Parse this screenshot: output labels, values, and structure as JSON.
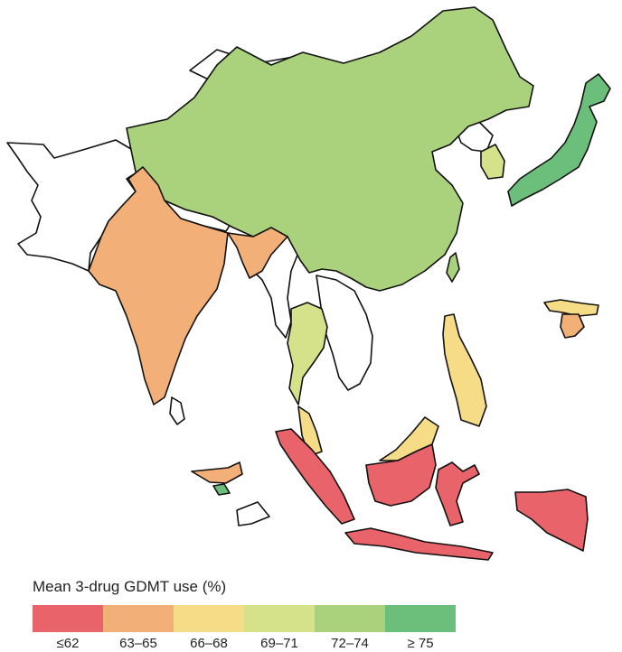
{
  "legend": {
    "title": "Mean 3-drug GDMT use (%)",
    "bins": [
      {
        "label": "≤62",
        "color": "#E8636A"
      },
      {
        "label": "63–65",
        "color": "#F2B078"
      },
      {
        "label": "66–68",
        "color": "#F6DC86"
      },
      {
        "label": "69–71",
        "color": "#D6E28A"
      },
      {
        "label": "72–74",
        "color": "#AAD27C"
      },
      {
        "label": "≥ 75",
        "color": "#6BBF7A"
      }
    ]
  },
  "regions": [
    {
      "name": "china",
      "bin": 4
    },
    {
      "name": "india",
      "bin": 1
    },
    {
      "name": "japan",
      "bin": 5
    },
    {
      "name": "south-korea",
      "bin": 3
    },
    {
      "name": "taiwan",
      "bin": 4
    },
    {
      "name": "thailand",
      "bin": 3
    },
    {
      "name": "malaysia",
      "bin": 2
    },
    {
      "name": "philippines",
      "bin": 2
    },
    {
      "name": "indonesia",
      "bin": 0
    },
    {
      "name": "bangladesh",
      "bin": 1
    }
  ]
}
